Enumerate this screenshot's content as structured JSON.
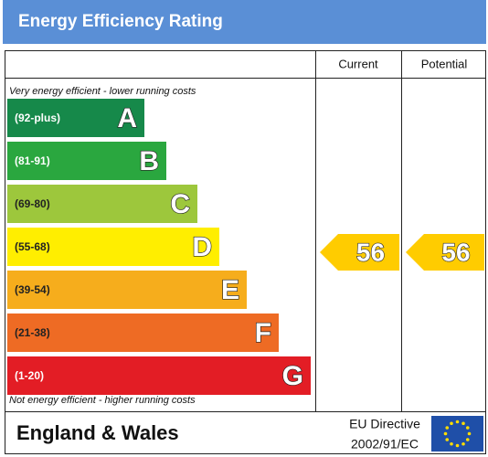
{
  "header": {
    "title": "Energy Efficiency Rating"
  },
  "columns": [
    "Current",
    "Potential"
  ],
  "top_note": "Very energy efficient - lower running costs",
  "bottom_note": "Not energy efficient - higher running costs",
  "bands": [
    {
      "range": "(92-plus)",
      "letter": "A",
      "color": "#16894a",
      "text_color": "#ffffff"
    },
    {
      "range": "(81-91)",
      "letter": "B",
      "color": "#2aa73f",
      "text_color": "#ffffff"
    },
    {
      "range": "(69-80)",
      "letter": "C",
      "color": "#9dc73c",
      "text_color": "#222222"
    },
    {
      "range": "(55-68)",
      "letter": "D",
      "color": "#ffee00",
      "text_color": "#222222"
    },
    {
      "range": "(39-54)",
      "letter": "E",
      "color": "#f6ad1c",
      "text_color": "#222222"
    },
    {
      "range": "(21-38)",
      "letter": "F",
      "color": "#ee6b24",
      "text_color": "#222222"
    },
    {
      "range": "(1-20)",
      "letter": "G",
      "color": "#e31d25",
      "text_color": "#ffffff"
    }
  ],
  "current": 56,
  "potential": 56,
  "arrow_color": "#ffcc00",
  "footer": {
    "region": "England & Wales",
    "directive": [
      "EU Directive",
      "2002/91/EC"
    ]
  }
}
